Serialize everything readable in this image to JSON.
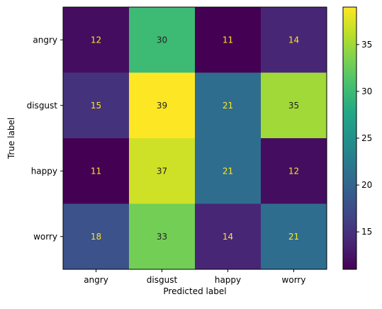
{
  "chart_data": {
    "type": "heatmap",
    "title": "",
    "xlabel": "Predicted label",
    "ylabel": "True label",
    "x_categories": [
      "angry",
      "disgust",
      "happy",
      "worry"
    ],
    "y_categories": [
      "angry",
      "disgust",
      "happy",
      "worry"
    ],
    "values": [
      [
        12,
        30,
        11,
        14
      ],
      [
        15,
        39,
        21,
        35
      ],
      [
        11,
        37,
        21,
        12
      ],
      [
        18,
        33,
        14,
        21
      ]
    ],
    "colormap": "viridis",
    "color_range": [
      11,
      39
    ],
    "colorbar_ticks": [
      "15",
      "20",
      "25",
      "30",
      "35"
    ],
    "low_value_text_color": "#fde725",
    "high_value_text_color": "#222222",
    "grid": false
  }
}
